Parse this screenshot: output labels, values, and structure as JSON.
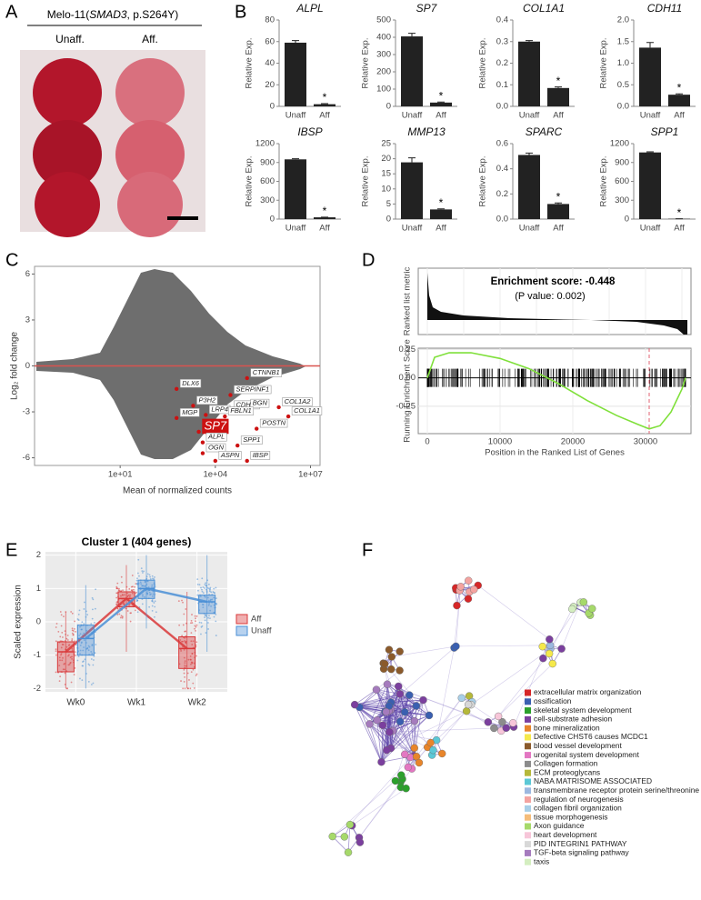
{
  "panel_labels": [
    "A",
    "B",
    "C",
    "D",
    "E",
    "F"
  ],
  "panel_a": {
    "title_parts": [
      "Melo-11(",
      "SMAD3",
      ", p.S264Y)"
    ],
    "columns": [
      "Unaff.",
      "Aff."
    ]
  },
  "panel_f": {
    "legend": [
      {
        "label": "extracellular matrix organization",
        "color": "#d62728"
      },
      {
        "label": "ossification",
        "color": "#3a5fb0"
      },
      {
        "label": "skeletal system development",
        "color": "#2ca02c"
      },
      {
        "label": "cell-substrate adhesion",
        "color": "#7b3f9e"
      },
      {
        "label": "bone mineralization",
        "color": "#e8852a"
      },
      {
        "label": "Defective CHST6 causes MCDC1",
        "color": "#f5e94a"
      },
      {
        "label": "blood vessel development",
        "color": "#8b5a2b"
      },
      {
        "label": "urogenital system development",
        "color": "#e377c2"
      },
      {
        "label": "Collagen formation",
        "color": "#8c8c8c"
      },
      {
        "label": "ECM proteoglycans",
        "color": "#b5b83a"
      },
      {
        "label": "NABA MATRISOME ASSOCIATED",
        "color": "#5bc8d6"
      },
      {
        "label": "transmembrane receptor protein serine/threonine",
        "color": "#9cb8e0"
      },
      {
        "label": "regulation of neurogenesis",
        "color": "#f4a3a0"
      },
      {
        "label": "collagen fibril organization",
        "color": "#a8cfe8"
      },
      {
        "label": "tissue morphogenesis",
        "color": "#f5bd7a"
      },
      {
        "label": "Axon guidance",
        "color": "#a6d96a"
      },
      {
        "label": "heart development",
        "color": "#f7c6d9"
      },
      {
        "label": "PID INTEGRIN1 PATHWAY",
        "color": "#d8d8d8"
      },
      {
        "label": "TGF-beta signaling pathway",
        "color": "#a57bbd"
      },
      {
        "label": "taxis",
        "color": "#d4eec0"
      }
    ]
  },
  "chart_data": [
    {
      "type": "bar",
      "title": "ALPL",
      "ylabel": "Relative Exp.",
      "categories": [
        "Unaff",
        "Aff"
      ],
      "values": [
        59,
        2
      ],
      "errors": [
        2,
        0.5
      ],
      "annotation": "*",
      "color": "#222222",
      "ylim": [
        0,
        80
      ],
      "yticks": [
        0,
        20,
        40,
        60,
        80
      ]
    },
    {
      "type": "bar",
      "title": "SP7",
      "ylabel": "Relative Exp.",
      "categories": [
        "Unaff",
        "Aff"
      ],
      "values": [
        405,
        22
      ],
      "errors": [
        18,
        3
      ],
      "annotation": "*",
      "color": "#222222",
      "ylim": [
        0,
        500
      ],
      "yticks": [
        0,
        100,
        200,
        300,
        400,
        500
      ]
    },
    {
      "type": "bar",
      "title": "COL1A1",
      "ylabel": "Relative Exp.",
      "categories": [
        "Unaff",
        "Aff"
      ],
      "values": [
        0.3,
        0.085
      ],
      "errors": [
        0.005,
        0.005
      ],
      "annotation": "*",
      "color": "#222222",
      "ylim": [
        0,
        0.4
      ],
      "yticks": [
        {
          "value": 0,
          "label": "0.0"
        },
        0.1,
        0.2,
        0.3,
        0.4
      ]
    },
    {
      "type": "bar",
      "title": "CDH11",
      "ylabel": "Relative Exp.",
      "categories": [
        "Unaff",
        "Aff"
      ],
      "values": [
        1.36,
        0.27
      ],
      "errors": [
        0.12,
        0.02
      ],
      "annotation": "*",
      "color": "#222222",
      "ylim": [
        0,
        2
      ],
      "yticks": [
        {
          "value": 0,
          "label": "0.0"
        },
        0.5,
        {
          "value": 1,
          "label": "1.0"
        },
        1.5,
        {
          "value": 2,
          "label": "2.0"
        }
      ]
    },
    {
      "type": "bar",
      "title": "IBSP",
      "ylabel": "Relative Exp.",
      "categories": [
        "Unaff",
        "Aff"
      ],
      "values": [
        950,
        28
      ],
      "errors": [
        10,
        3
      ],
      "annotation": "*",
      "color": "#222222",
      "ylim": [
        0,
        1200
      ],
      "yticks": [
        0,
        300,
        600,
        900,
        1200
      ]
    },
    {
      "type": "bar",
      "title": "MMP13",
      "ylabel": "Relative Exp.",
      "categories": [
        "Unaff",
        "Aff"
      ],
      "values": [
        18.8,
        3.2
      ],
      "errors": [
        1.5,
        0.2
      ],
      "annotation": "*",
      "color": "#222222",
      "ylim": [
        0,
        25
      ],
      "yticks": [
        0,
        5,
        10,
        15,
        20,
        25
      ]
    },
    {
      "type": "bar",
      "title": "SPARC",
      "ylabel": "Relative Exp.",
      "categories": [
        "Unaff",
        "Aff"
      ],
      "values": [
        0.51,
        0.12
      ],
      "errors": [
        0.015,
        0.008
      ],
      "annotation": "*",
      "color": "#222222",
      "ylim": [
        0,
        0.6
      ],
      "yticks": [
        {
          "value": 0,
          "label": "0.0"
        },
        0.2,
        0.4,
        0.6
      ]
    },
    {
      "type": "bar",
      "title": "SPP1",
      "ylabel": "Relative Exp.",
      "categories": [
        "Unaff",
        "Aff"
      ],
      "values": [
        1060,
        5
      ],
      "errors": [
        10,
        1
      ],
      "annotation": "*",
      "color": "#222222",
      "ylim": [
        0,
        1200
      ],
      "yticks": [
        0,
        300,
        600,
        900,
        1200
      ]
    },
    {
      "type": "scatter",
      "xlabel": "Mean of normalized counts",
      "ylabel": "Log₂ fold change",
      "log_x": true,
      "point_labels": [
        "DLX6",
        "SERPINF1",
        "CTNNB1",
        "P3H2",
        "CDH11",
        "BGN",
        "COL1A2",
        "MGP",
        "LRP4",
        "FBLN1",
        "COL1A1",
        "SP7",
        "POSTN",
        "ALPL",
        "SPP1",
        "OGN",
        "ASPN",
        "IBSP"
      ],
      "x": [
        600,
        30000,
        100000,
        2000,
        30000,
        100000,
        1000000,
        600,
        5000,
        20000,
        2000000,
        3000,
        200000,
        4000,
        50000,
        4000,
        10000,
        100000
      ],
      "values": [
        -1.5,
        -1.9,
        -0.8,
        -2.6,
        -2.9,
        -2.8,
        -2.7,
        -3.4,
        -3.2,
        -3.3,
        -3.3,
        -4.3,
        -4.1,
        -5.0,
        -5.2,
        -5.7,
        -6.2,
        -6.2
      ],
      "emphasized": [
        false,
        false,
        false,
        false,
        false,
        false,
        false,
        false,
        false,
        false,
        false,
        true,
        false,
        false,
        false,
        false,
        false,
        false
      ],
      "color": "#cc1111",
      "hline": 0,
      "hline_color": "#d9534f",
      "xlim": [
        0.02,
        20000000
      ],
      "ylim": [
        -6.5,
        6.5
      ],
      "xticks": [
        {
          "value": 10,
          "label": "1e+01"
        },
        {
          "value": 10000,
          "label": "1e+04"
        },
        {
          "value": 10000000,
          "label": "1e+07"
        }
      ],
      "yticks": [
        -6,
        -3,
        0,
        3,
        6
      ]
    },
    {
      "type": "line",
      "title": "Enrichment score: -0.448",
      "subtitle": "(P value: 0.002)",
      "top_ylabel": "Ranked list metric",
      "ylabel": "Running Enrichment Score",
      "xlabel": "Position in the Ranked List of Genes",
      "x": [
        0,
        1000,
        3000,
        6000,
        10000,
        14000,
        18000,
        22000,
        26000,
        29000,
        30500,
        32000,
        33500,
        35000,
        35500
      ],
      "values": [
        0,
        0.18,
        0.22,
        0.22,
        0.17,
        0.08,
        -0.05,
        -0.2,
        -0.33,
        -0.41,
        -0.448,
        -0.42,
        -0.3,
        -0.1,
        0
      ],
      "color": "#7fe03a",
      "vline": 30500,
      "vline_color": "#e06070",
      "xlim": [
        -1250,
        36250
      ],
      "ylim": [
        -0.49,
        0.26
      ],
      "xticks": [
        0,
        10000,
        20000,
        30000
      ],
      "yticks": [
        0.25,
        {
          "value": 0,
          "label": "0.00"
        },
        -0.25
      ]
    },
    {
      "type": "box",
      "title": "Cluster 1 (404 genes)",
      "ylabel": "Scaled expression",
      "categories": [
        "Wk0",
        "Wk1",
        "Wk2"
      ],
      "ylim": [
        -2.1,
        2.1
      ],
      "yticks": [
        2,
        1,
        0,
        -1,
        -2
      ],
      "series": [
        {
          "name": "Aff",
          "color": "#d9383a",
          "low": [
            -2,
            -0.9,
            -2
          ],
          "q1": [
            -1.5,
            0.45,
            -1.4
          ],
          "median": [
            -0.9,
            0.7,
            -0.8
          ],
          "q3": [
            -0.6,
            0.9,
            -0.45
          ],
          "high": [
            0.3,
            1.7,
            0.9
          ]
        },
        {
          "name": "Unaff",
          "color": "#4a8fd6",
          "low": [
            -2,
            -0.2,
            -0.9
          ],
          "q1": [
            -1,
            0.7,
            0.25
          ],
          "median": [
            -0.5,
            1,
            0.6
          ],
          "q3": [
            -0.1,
            1.25,
            0.8
          ],
          "high": [
            1.1,
            2,
            2
          ]
        }
      ]
    }
  ]
}
